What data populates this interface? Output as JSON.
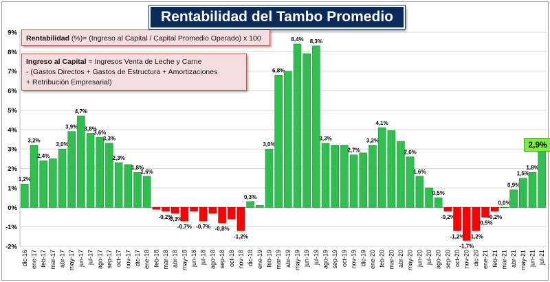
{
  "title": "Rentabilidad del Tambo Promedio",
  "notes": {
    "formula_label": "Rentabilidad",
    "formula_rest": " (%)= (Ingreso al Capital / Capital Promedio Operado) x 100",
    "def_label": "Ingreso al Capital",
    "def_line1_rest": " = Ingresos Venta de Leche y Carne",
    "def_line2": "-  (Gastos Directos + Gastos de Estructura  + Amortizaciones",
    "def_line3": "+  Retribución Empresarial)"
  },
  "colors": {
    "positive": "#2fbf4f",
    "positive_stroke": "#1f8f38",
    "negative": "#ff0000",
    "grid": "#d9d9d9",
    "badge": "#7ef03a"
  },
  "chart_data": {
    "type": "bar",
    "title": "Rentabilidad del Tambo Promedio",
    "xlabel": "",
    "ylabel": "",
    "ylim": [
      -2,
      9
    ],
    "yticks": [
      -2,
      -1,
      0,
      1,
      2,
      3,
      4,
      5,
      6,
      7,
      8,
      9
    ],
    "ytick_labels": [
      "-2%",
      "-1%",
      "0%",
      "1%",
      "2%",
      "3%",
      "4%",
      "5%",
      "6%",
      "7%",
      "8%",
      "9%"
    ],
    "grid": true,
    "categories": [
      "dic-16",
      "ene-17",
      "feb-17",
      "mar-17",
      "abr-17",
      "may-17",
      "jun-17",
      "jul-17",
      "ago-17",
      "sep-17",
      "oct-17",
      "nov-17",
      "dic-17",
      "ene-18",
      "feb-18",
      "mar-18",
      "abr-18",
      "may-18",
      "jun-18",
      "jul-18",
      "ago-18",
      "sep-18",
      "oct-18",
      "nov-18",
      "dic-18",
      "ene-19",
      "feb-19",
      "mar-19",
      "abr-19",
      "may-19",
      "jun-19",
      "jul-19",
      "ago-19",
      "sep-19",
      "oct-19",
      "nov-19",
      "dic-19",
      "ene-20",
      "feb-20",
      "mar-20",
      "abr-20",
      "may-20",
      "jun-20",
      "jul-20",
      "ago-20",
      "sep-20",
      "oct-20",
      "nov-20",
      "dic-20",
      "ene-21",
      "feb-21",
      "mar-21",
      "abr-21",
      "may-21",
      "jun-21",
      "jul-21"
    ],
    "values": [
      1.2,
      3.2,
      2.4,
      2.5,
      3.0,
      3.9,
      4.7,
      3.8,
      3.6,
      3.3,
      2.3,
      2.2,
      1.8,
      1.6,
      -0.1,
      -0.2,
      -0.3,
      -0.7,
      -0.2,
      -0.7,
      -0.3,
      -0.8,
      -0.6,
      -1.2,
      0.3,
      0.1,
      3.0,
      6.8,
      7.0,
      8.4,
      7.9,
      8.3,
      3.3,
      3.2,
      3.2,
      2.7,
      2.8,
      3.2,
      4.1,
      3.95,
      3.4,
      2.6,
      1.6,
      1.0,
      0.5,
      -0.2,
      -1.2,
      -1.7,
      -1.2,
      -0.5,
      -0.2,
      0.0,
      0.9,
      1.5,
      1.8,
      2.9
    ],
    "labels": [
      "1,2%",
      "3,2%",
      "2,4%",
      "",
      "3,0%",
      "3,9%",
      "4,7%",
      "3,8%",
      "3,6%",
      "3,3%",
      "2,3%",
      "",
      "1,8%",
      "1,6%",
      "",
      "-0,2%",
      "-0,3%",
      "-0,7%",
      "",
      "-0,7%",
      "",
      "-0,8%",
      "",
      "-1,2%",
      "0,3%",
      "",
      "3,0%",
      "6,8%",
      "",
      "8,4%",
      "",
      "8,3%",
      "3,3%",
      "",
      "",
      "2,7%",
      "",
      "3,2%",
      "4,1%",
      "",
      "",
      "2,6%",
      "1,6%",
      "",
      "0,5%",
      "-0,2%",
      "-1,2%",
      "-1,7%",
      "-1,2%",
      "-0,5%",
      "-0,2%",
      "0,0%",
      "0,9%",
      "1,5%",
      "1,8%",
      "2,9%"
    ],
    "xtick_labels": [
      "dic-16",
      "ene-17",
      "feb-17",
      "mar-17",
      "abr-17",
      "may-17",
      "jun-17",
      "jul-17",
      "ago-17",
      "sep-17",
      "oct-17",
      "nov-17",
      "dic-17",
      "ene-18",
      "feb-18",
      "mar-18",
      "abr-18",
      "may-18",
      "jun-18",
      "jul-18",
      "ago-18",
      "sep-18",
      "oct-18",
      "nov-18",
      "dic-18",
      "ene-19",
      "feb-19",
      "mar-19",
      "abr-19",
      "may-19",
      "jun-19",
      "jul-19",
      "ago-19",
      "sep-19",
      "oct-19",
      "nov-19",
      "dic-19",
      "ene-20",
      "feb-20",
      "mar-20",
      "abr-20",
      "may-20",
      "jun-20",
      "jul-20",
      "ago-20",
      "sep-20",
      "oct-20",
      "nov-20",
      "dic-20",
      "ene-21",
      "feb-21",
      "mar-21",
      "abr-21",
      "may-21",
      "jun-21",
      "jul-21"
    ],
    "highlight_label": "2,9%"
  }
}
